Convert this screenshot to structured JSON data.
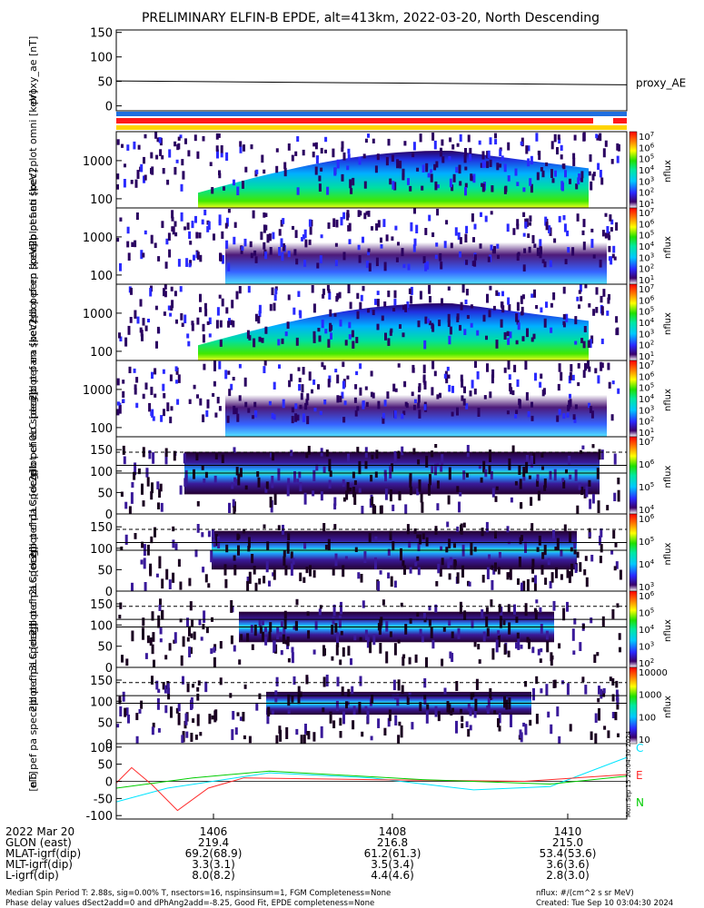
{
  "title": "PRELIMINARY ELFIN-B EPDE, alt=413km, 2022-03-20, North Descending",
  "chart_data": [
    {
      "type": "line",
      "panel": "proxy_ae",
      "ylabel": "proxy_ae [nT]",
      "ylim": [
        -10,
        155
      ],
      "yticks": [
        "150",
        "100",
        "50",
        "0"
      ],
      "legend": "proxy_AE",
      "x": [
        0,
        0.25,
        0.5,
        0.75,
        1.0
      ],
      "values": [
        51,
        49,
        47,
        45,
        43
      ]
    },
    {
      "type": "heatmap",
      "panel": "pef_en_spec2plot_omni",
      "ylabel": "elb pef en spec2plot omni [keV]",
      "scale": "log",
      "yticks": [
        "1000",
        "100"
      ],
      "colorbar_label": "nflux",
      "colorbar_ticks": [
        "10^7",
        "10^6",
        "10^5",
        "10^4",
        "10^3",
        "10^2",
        "10^1"
      ]
    },
    {
      "type": "heatmap",
      "panel": "pef_en_spec2plot_anti",
      "ylabel": "elb pef en spec2plot anti [keV]",
      "scale": "log",
      "yticks": [
        "1000",
        "100"
      ],
      "colorbar_label": "nflux",
      "colorbar_ticks": [
        "10^7",
        "10^6",
        "10^5",
        "10^4",
        "10^3",
        "10^2",
        "10^1"
      ]
    },
    {
      "type": "heatmap",
      "panel": "pef_en_spec2plot_perp",
      "ylabel": "elb pef en spec2plot perp [keV]",
      "scale": "log",
      "yticks": [
        "1000",
        "100"
      ],
      "colorbar_label": "nflux",
      "colorbar_ticks": [
        "10^7",
        "10^6",
        "10^5",
        "10^4",
        "10^3",
        "10^2",
        "10^1"
      ]
    },
    {
      "type": "heatmap",
      "panel": "pef_en_spec2plot_para",
      "ylabel": "elb pef en spec2plot para [keV]",
      "scale": "log",
      "yticks": [
        "1000",
        "100"
      ],
      "colorbar_label": "nflux",
      "colorbar_ticks": [
        "10^7",
        "10^6",
        "10^5",
        "10^4",
        "10^3",
        "10^2",
        "10^1"
      ]
    },
    {
      "type": "heatmap",
      "panel": "pef_pa_spec2plot_ch0LC",
      "ylabel": "elb pef pa spec2plot ch0LC [deg]",
      "ylim": [
        0,
        180
      ],
      "yticks": [
        "150",
        "100",
        "50",
        "0"
      ],
      "colorbar_label": "nflux",
      "colorbar_ticks": [
        "10^7",
        "10^6",
        "10^5",
        "10^4"
      ]
    },
    {
      "type": "heatmap",
      "panel": "pef_pa_spec2plot_ch1LC",
      "ylabel": "elb pef pa spec2plot ch1LC [deg]",
      "ylim": [
        0,
        180
      ],
      "yticks": [
        "150",
        "100",
        "50",
        "0"
      ],
      "colorbar_label": "nflux",
      "colorbar_ticks": [
        "10^6",
        "10^5",
        "10^4",
        "10^3"
      ]
    },
    {
      "type": "heatmap",
      "panel": "pef_pa_spec2plot_ch2LC",
      "ylabel": "elb pef pa spec2plot ch2LC [deg]",
      "ylim": [
        0,
        180
      ],
      "yticks": [
        "150",
        "100",
        "50",
        "0"
      ],
      "colorbar_label": "nflux",
      "colorbar_ticks": [
        "10^6",
        "10^5",
        "10^4",
        "10^3",
        "10^2"
      ]
    },
    {
      "type": "heatmap",
      "panel": "pef_pa_spec2plot_ch3LC",
      "ylabel": "elb pef pa spec2plot ch3LC [deg]",
      "ylim": [
        0,
        180
      ],
      "yticks": [
        "150",
        "100",
        "50",
        "0"
      ],
      "colorbar_label": "nflux",
      "colorbar_ticks": [
        "10000",
        "1000",
        "100",
        "10"
      ]
    },
    {
      "type": "line",
      "panel": "dB",
      "ylabel": "[nT]",
      "ylim": [
        -110,
        110
      ],
      "yticks": [
        "100",
        "50",
        "0",
        "-50",
        "-100"
      ],
      "series": [
        {
          "name": "C",
          "color": "#00e5ff"
        },
        {
          "name": "E",
          "color": "#ff2a2a"
        },
        {
          "name": "N",
          "color": "#00cc00"
        }
      ]
    }
  ],
  "xaxis": {
    "rows": [
      {
        "label": "2022 Mar 20",
        "values": [
          "1406",
          "1408",
          "1410"
        ]
      },
      {
        "label": "GLON (east)",
        "values": [
          "219.4",
          "216.8",
          "215.0"
        ]
      },
      {
        "label": "MLAT-igrf(dip)",
        "values": [
          "69.2(68.9)",
          "61.2(61.3)",
          "53.4(53.6)"
        ]
      },
      {
        "label": "MLT-igrf(dip)",
        "values": [
          "3.3(3.1)",
          "3.5(3.4)",
          "3.6(3.6)"
        ]
      },
      {
        "label": "L-igrf(dip)",
        "values": [
          "8.0(8.2)",
          "4.4(4.6)",
          "2.8(3.0)"
        ]
      }
    ]
  },
  "footer": {
    "line1": "Median Spin Period T: 2.88s, sig=0.00% T, nsectors=16, nspinsinsum=1, FGM Completeness=None",
    "line2": "Phase delay values dSect2add=0 and dPhAng2add=-8.25, Good Fit, EPDE completeness=None",
    "units": "nflux: #/(cm^2 s sr MeV)",
    "created": "Created: Tue Sep 10 03:04:30 2024",
    "side_stamp": "Mon Sep 15 20:04:30 2024"
  },
  "colors": {
    "bar_blue": "#1f6fe0",
    "bar_red": "#ff1a1a",
    "bar_yellow": "#ffd400"
  }
}
